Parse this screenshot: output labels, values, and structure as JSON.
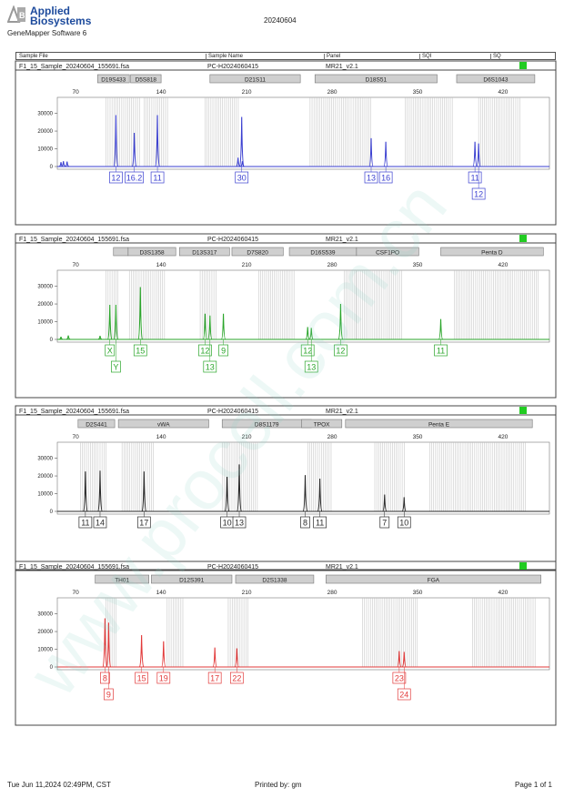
{
  "header": {
    "brand_line1": "Applied",
    "brand_line2": "Biosystems",
    "software": "GeneMapper Software 6",
    "report_date": "20240604"
  },
  "table_header": {
    "sample_file": "Sample File",
    "sample_name": "Sample Name",
    "panel": "Panel",
    "sqi": "SQI",
    "sq": "SQ"
  },
  "footer": {
    "datetime": "Tue Jun 11,2024 02:49PM, CST",
    "printed_by": "Printed by: gm",
    "page": "Page 1 of 1"
  },
  "watermark": "www.procell.com.cn",
  "colors": {
    "blue": "#3a3fd0",
    "green": "#2aa52a",
    "black": "#2a2a2a",
    "red": "#e23a3a",
    "status": "#22cc22"
  },
  "chart_data": [
    {
      "type": "line",
      "title": "F1_15_Sample_20240604_155691.fsa",
      "sample_name": "PC-H2024060415",
      "panel": "MR21_v2.1",
      "color": "#3a3fd0",
      "x_ticks": [
        70,
        140,
        210,
        280,
        350,
        420
      ],
      "xlim": [
        55,
        458
      ],
      "y_ticks": [
        0,
        10000,
        20000,
        30000
      ],
      "y_tick_labels": [
        "0",
        "10000",
        "20000",
        "30000"
      ],
      "ylim": [
        0,
        38000
      ],
      "markers": [
        {
          "name": "D19S433",
          "start": 88,
          "end": 114
        },
        {
          "name": "D5S818",
          "start": 115,
          "end": 140
        },
        {
          "name": "D21S11",
          "start": 180,
          "end": 254
        },
        {
          "name": "D18S51",
          "start": 266,
          "end": 366
        },
        {
          "name": "D6S1043",
          "start": 382,
          "end": 446
        }
      ],
      "bins": [
        [
          95,
          123
        ],
        [
          126,
          146
        ],
        [
          176,
          204
        ],
        [
          262,
          312
        ],
        [
          340,
          380
        ],
        [
          400,
          434
        ]
      ],
      "peaks": [
        {
          "x": 58,
          "h": 2500
        },
        {
          "x": 60,
          "h": 3000
        },
        {
          "x": 63,
          "h": 2800
        },
        {
          "x": 103,
          "h": 29000
        },
        {
          "x": 118,
          "h": 19000
        },
        {
          "x": 137,
          "h": 29000
        },
        {
          "x": 203,
          "h": 5000
        },
        {
          "x": 206,
          "h": 28000
        },
        {
          "x": 206.5,
          "h": 3000
        },
        {
          "x": 312,
          "h": 16000
        },
        {
          "x": 324,
          "h": 14000
        },
        {
          "x": 397,
          "h": 14000
        },
        {
          "x": 400,
          "h": 13000
        }
      ],
      "alleles": [
        {
          "label": "12",
          "x": 103,
          "row": 0
        },
        {
          "label": "16.2",
          "x": 118,
          "row": 0
        },
        {
          "label": "11",
          "x": 137,
          "row": 0
        },
        {
          "label": "30",
          "x": 206,
          "row": 0
        },
        {
          "label": "13",
          "x": 312,
          "row": 0
        },
        {
          "label": "16",
          "x": 324,
          "row": 0
        },
        {
          "label": "11",
          "x": 397,
          "row": 0
        },
        {
          "label": "12",
          "x": 400,
          "row": 1
        }
      ]
    },
    {
      "type": "line",
      "title": "F1_15_Sample_20240604_155691.fsa",
      "sample_name": "PC-H2024060415",
      "panel": "MR21_v2.1",
      "color": "#2aa52a",
      "x_ticks": [
        70,
        140,
        210,
        280,
        350,
        420
      ],
      "xlim": [
        55,
        458
      ],
      "y_ticks": [
        0,
        10000,
        20000,
        30000
      ],
      "y_tick_labels": [
        "0",
        "10000",
        "20000",
        "30000"
      ],
      "ylim": [
        0,
        38000
      ],
      "markers": [
        {
          "name": "",
          "start": 101,
          "end": 113
        },
        {
          "name": "D3S1358",
          "start": 113,
          "end": 152
        },
        {
          "name": "D13S317",
          "start": 155,
          "end": 196
        },
        {
          "name": "D7S820",
          "start": 198,
          "end": 240
        },
        {
          "name": "D16S539",
          "start": 245,
          "end": 300
        },
        {
          "name": "CSF1PO",
          "start": 300,
          "end": 351
        },
        {
          "name": "Penta D",
          "start": 369,
          "end": 453
        }
      ],
      "bins": [
        [
          95,
          106
        ],
        [
          114,
          143
        ],
        [
          172,
          186
        ],
        [
          220,
          250
        ],
        [
          290,
          300
        ],
        [
          300,
          338
        ],
        [
          380,
          450
        ]
      ],
      "peaks": [
        {
          "x": 58,
          "h": 1500
        },
        {
          "x": 64,
          "h": 2200
        },
        {
          "x": 90,
          "h": 2000
        },
        {
          "x": 98,
          "h": 19500
        },
        {
          "x": 103,
          "h": 19500
        },
        {
          "x": 123,
          "h": 29500
        },
        {
          "x": 176,
          "h": 14500
        },
        {
          "x": 180,
          "h": 13500
        },
        {
          "x": 191,
          "h": 14500
        },
        {
          "x": 260,
          "h": 7000
        },
        {
          "x": 263,
          "h": 6500
        },
        {
          "x": 287,
          "h": 20000
        },
        {
          "x": 369,
          "h": 11500
        }
      ],
      "alleles": [
        {
          "label": "X",
          "x": 98,
          "row": 0
        },
        {
          "label": "Y",
          "x": 103,
          "row": 1
        },
        {
          "label": "15",
          "x": 123,
          "row": 0
        },
        {
          "label": "12",
          "x": 176,
          "row": 0
        },
        {
          "label": "13",
          "x": 180,
          "row": 1
        },
        {
          "label": "9",
          "x": 191,
          "row": 0
        },
        {
          "label": "12",
          "x": 260,
          "row": 0
        },
        {
          "label": "13",
          "x": 263,
          "row": 1
        },
        {
          "label": "12",
          "x": 287,
          "row": 0
        },
        {
          "label": "11",
          "x": 369,
          "row": 0
        }
      ]
    },
    {
      "type": "line",
      "title": "F1_15_Sample_20240604_155691.fsa",
      "sample_name": "PC-H2024060415",
      "panel": "MR21_v2.1",
      "color": "#2a2a2a",
      "x_ticks": [
        70,
        140,
        210,
        280,
        350,
        420
      ],
      "xlim": [
        55,
        458
      ],
      "y_ticks": [
        0,
        10000,
        20000,
        30000
      ],
      "y_tick_labels": [
        "0",
        "10000",
        "20000",
        "30000"
      ],
      "ylim": [
        0,
        38000
      ],
      "markers": [
        {
          "name": "D2S441",
          "start": 72,
          "end": 102
        },
        {
          "name": "vWA",
          "start": 105,
          "end": 179
        },
        {
          "name": "D8S1179",
          "start": 190,
          "end": 263
        },
        {
          "name": "TPOX",
          "start": 255,
          "end": 288
        },
        {
          "name": "Penta E",
          "start": 291,
          "end": 444
        }
      ],
      "bins": [
        [
          74,
          95
        ],
        [
          108,
          135
        ],
        [
          190,
          220
        ],
        [
          260,
          280
        ],
        [
          315,
          340
        ],
        [
          360,
          440
        ]
      ],
      "peaks": [
        {
          "x": 78,
          "h": 22500
        },
        {
          "x": 90,
          "h": 23000
        },
        {
          "x": 126,
          "h": 22500
        },
        {
          "x": 194,
          "h": 19500
        },
        {
          "x": 204,
          "h": 26500
        },
        {
          "x": 258,
          "h": 20500
        },
        {
          "x": 270,
          "h": 18500
        },
        {
          "x": 323,
          "h": 9500
        },
        {
          "x": 339,
          "h": 8000
        }
      ],
      "alleles": [
        {
          "label": "11",
          "x": 78,
          "row": 0
        },
        {
          "label": "14",
          "x": 90,
          "row": 0
        },
        {
          "label": "17",
          "x": 126,
          "row": 0
        },
        {
          "label": "10",
          "x": 194,
          "row": 0
        },
        {
          "label": "13",
          "x": 204,
          "row": 0
        },
        {
          "label": "8",
          "x": 258,
          "row": 0
        },
        {
          "label": "11",
          "x": 270,
          "row": 0
        },
        {
          "label": "7",
          "x": 323,
          "row": 0
        },
        {
          "label": "10",
          "x": 339,
          "row": 0
        }
      ]
    },
    {
      "type": "line",
      "title": "F1_15_Sample_20240604_155691.fsa",
      "sample_name": "PC-H2024060415",
      "panel": "MR21_v2.1",
      "color": "#e23a3a",
      "x_ticks": [
        70,
        140,
        210,
        280,
        350,
        420
      ],
      "xlim": [
        55,
        458
      ],
      "y_ticks": [
        0,
        10000,
        20000,
        30000
      ],
      "y_tick_labels": [
        "0",
        "10000",
        "20000",
        "30000"
      ],
      "ylim": [
        0,
        38000
      ],
      "markers": [
        {
          "name": "TH01",
          "start": 86,
          "end": 130
        },
        {
          "name": "D12S391",
          "start": 132,
          "end": 198
        },
        {
          "name": "D2S1338",
          "start": 201,
          "end": 265
        },
        {
          "name": "FGA",
          "start": 275,
          "end": 451
        }
      ],
      "bins": [
        [
          95,
          103
        ],
        [
          145,
          158
        ],
        [
          195,
          212
        ],
        [
          305,
          350
        ],
        [
          395,
          447
        ]
      ],
      "peaks": [
        {
          "x": 94,
          "h": 27500
        },
        {
          "x": 97,
          "h": 25000
        },
        {
          "x": 124,
          "h": 18000
        },
        {
          "x": 142,
          "h": 14500
        },
        {
          "x": 184,
          "h": 11000
        },
        {
          "x": 202,
          "h": 10500
        },
        {
          "x": 335,
          "h": 9000
        },
        {
          "x": 339,
          "h": 8500
        }
      ],
      "alleles": [
        {
          "label": "8",
          "x": 94,
          "row": 0
        },
        {
          "label": "9",
          "x": 97,
          "row": 1
        },
        {
          "label": "15",
          "x": 124,
          "row": 0
        },
        {
          "label": "19",
          "x": 142,
          "row": 0
        },
        {
          "label": "17",
          "x": 184,
          "row": 0
        },
        {
          "label": "22",
          "x": 202,
          "row": 0
        },
        {
          "label": "23",
          "x": 335,
          "row": 0
        },
        {
          "label": "24",
          "x": 339,
          "row": 1
        }
      ]
    }
  ]
}
